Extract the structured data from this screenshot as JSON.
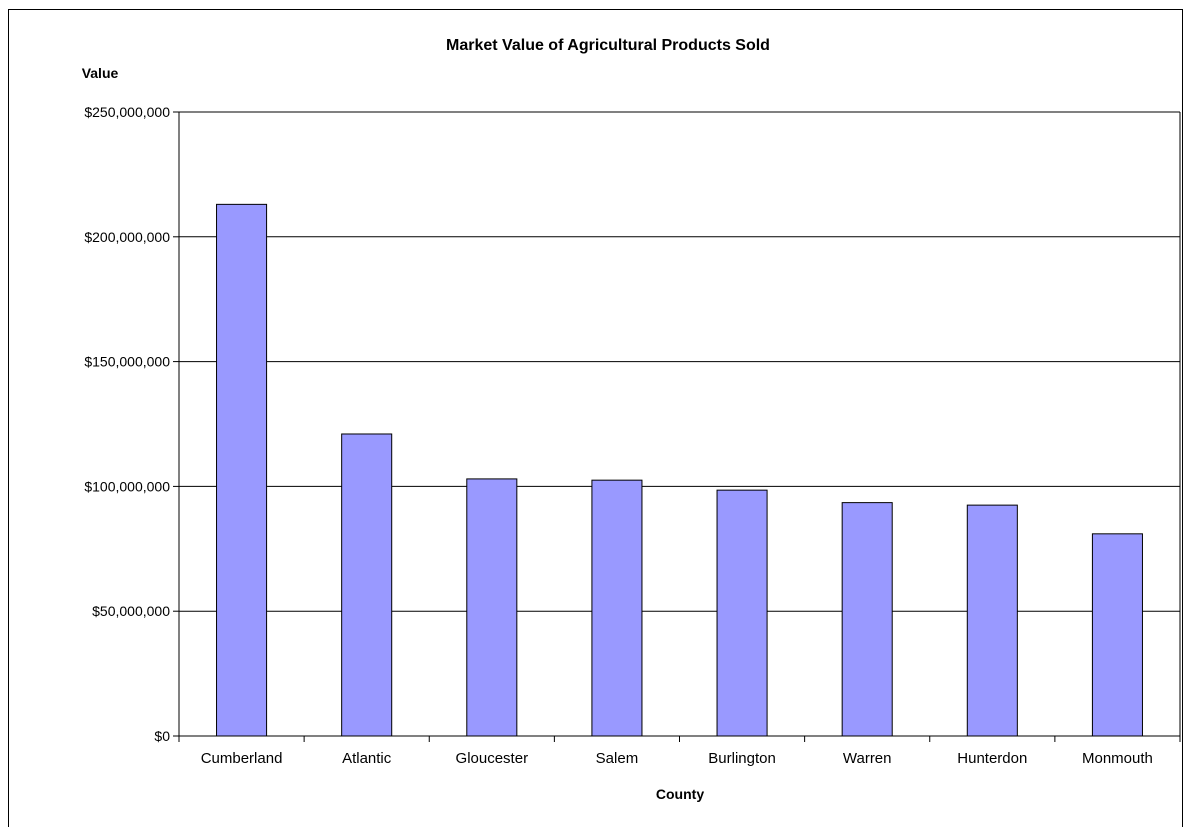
{
  "chart_data": {
    "type": "bar",
    "title": "Market Value of Agricultural Products Sold",
    "xlabel": "County",
    "ylabel": "Value",
    "categories": [
      "Cumberland",
      "Atlantic",
      "Gloucester",
      "Salem",
      "Burlington",
      "Warren",
      "Hunterdon",
      "Monmouth"
    ],
    "values": [
      213000000,
      121000000,
      103000000,
      102500000,
      98500000,
      93500000,
      92500000,
      81000000
    ],
    "ylim": [
      0,
      250000000
    ],
    "yticks": [
      0,
      50000000,
      100000000,
      150000000,
      200000000,
      250000000
    ],
    "ytick_labels": [
      "$0",
      "$50,000,000",
      "$100,000,000",
      "$150,000,000",
      "$200,000,000",
      "$250,000,000"
    ],
    "bar_color": "#9999ff",
    "grid": true,
    "legend": "none"
  }
}
